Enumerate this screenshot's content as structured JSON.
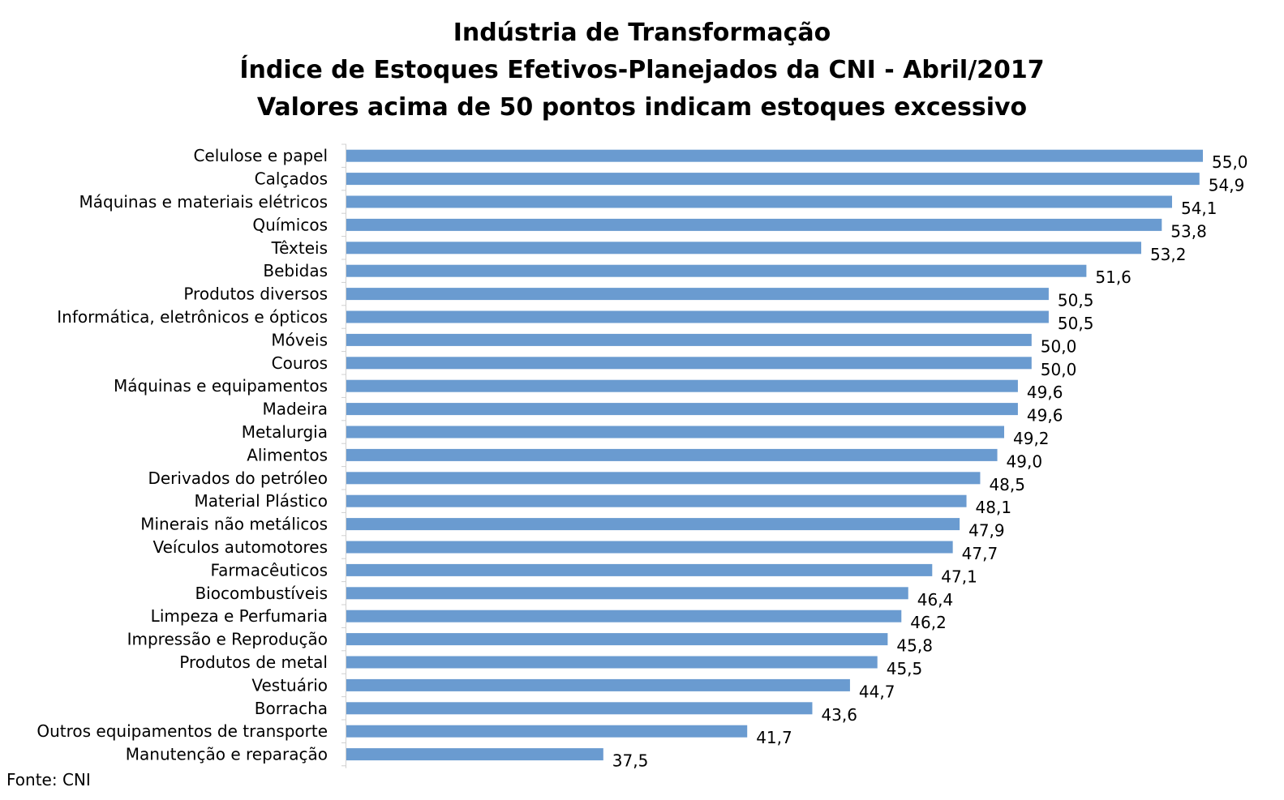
{
  "chart_data": {
    "type": "bar",
    "orientation": "horizontal",
    "title": [
      "Indústria de Transformação",
      "Índice de Estoques Efetivos-Planejados da CNI - Abril/2017",
      "Valores acima de 50 pontos indicam estoques excessivo"
    ],
    "categories": [
      "Celulose e papel",
      "Calçados",
      "Máquinas e materiais elétricos",
      "Químicos",
      "Têxteis",
      "Bebidas",
      "Produtos diversos",
      "Informática, eletrônicos e ópticos",
      "Móveis",
      "Couros",
      "Máquinas e equipamentos",
      "Madeira",
      "Metalurgia",
      "Alimentos",
      "Derivados do petróleo",
      "Material Plástico",
      "Minerais não metálicos",
      "Veículos automotores",
      "Farmacêuticos",
      "Biocombustíveis",
      "Limpeza e Perfumaria",
      "Impressão e Reprodução",
      "Produtos de metal",
      "Vestuário",
      "Borracha",
      "Outros equipamentos de transporte",
      "Manutenção e reparação"
    ],
    "values": [
      55.0,
      54.9,
      54.1,
      53.8,
      53.2,
      51.6,
      50.5,
      50.5,
      50.0,
      50.0,
      49.6,
      49.6,
      49.2,
      49.0,
      48.5,
      48.1,
      47.9,
      47.7,
      47.1,
      46.4,
      46.2,
      45.8,
      45.5,
      44.7,
      43.6,
      41.7,
      37.5
    ],
    "value_labels": [
      "55,0",
      "54,9",
      "54,1",
      "53,8",
      "53,2",
      "51,6",
      "50,5",
      "50,5",
      "50,0",
      "50,0",
      "49,6",
      "49,6",
      "49,2",
      "49,0",
      "48,5",
      "48,1",
      "47,9",
      "47,7",
      "47,1",
      "46,4",
      "46,2",
      "45,8",
      "45,5",
      "44,7",
      "43,6",
      "41,7",
      "37,5"
    ],
    "xlim": [
      30,
      55
    ],
    "bar_color": "#6a9bd0",
    "grid": false,
    "legend": "none"
  },
  "source": "Fonte: CNI"
}
